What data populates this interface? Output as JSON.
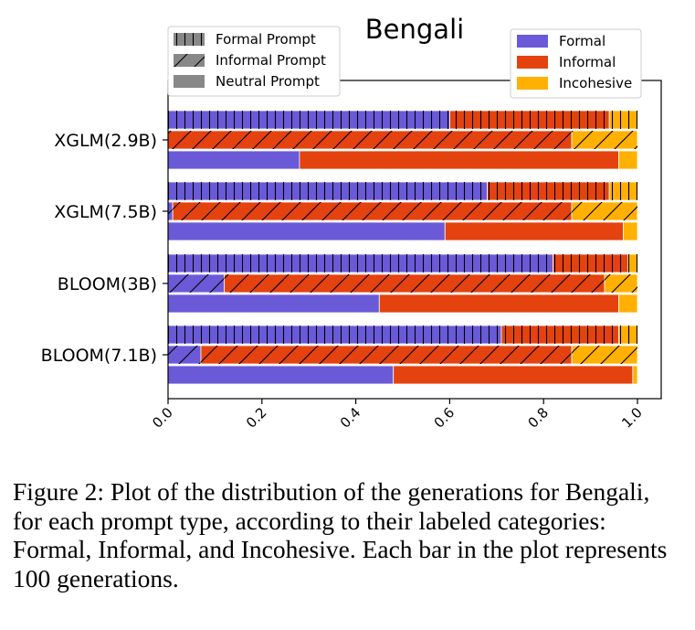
{
  "chart_data": {
    "type": "bar",
    "orientation": "horizontal",
    "stacked": true,
    "title": "Bengali",
    "categories": [
      "XGLM(2.9B)",
      "XGLM(7.5B)",
      "BLOOM(3B)",
      "BLOOM(7.1B)"
    ],
    "prompt_types": [
      "Formal Prompt",
      "Informal Prompt",
      "Neutral Prompt"
    ],
    "label_categories": [
      "Formal",
      "Informal",
      "Incohesive"
    ],
    "colors": {
      "Formal": "#6a5ad8",
      "Informal": "#e4420f",
      "Incohesive": "#ffb000"
    },
    "values": {
      "XGLM(2.9B)": {
        "Formal Prompt": [
          0.6,
          0.34,
          0.06
        ],
        "Informal Prompt": [
          0.0,
          0.86,
          0.14
        ],
        "Neutral Prompt": [
          0.28,
          0.68,
          0.04
        ]
      },
      "XGLM(7.5B)": {
        "Formal Prompt": [
          0.68,
          0.26,
          0.06
        ],
        "Informal Prompt": [
          0.01,
          0.85,
          0.14
        ],
        "Neutral Prompt": [
          0.59,
          0.38,
          0.03
        ]
      },
      "BLOOM(3B)": {
        "Formal Prompt": [
          0.82,
          0.16,
          0.02
        ],
        "Informal Prompt": [
          0.12,
          0.81,
          0.07
        ],
        "Neutral Prompt": [
          0.45,
          0.51,
          0.04
        ]
      },
      "BLOOM(7.1B)": {
        "Formal Prompt": [
          0.71,
          0.25,
          0.04
        ],
        "Informal Prompt": [
          0.07,
          0.79,
          0.14
        ],
        "Neutral Prompt": [
          0.48,
          0.51,
          0.01
        ]
      }
    },
    "xlim": [
      0,
      1.0
    ],
    "xticks": [
      "0.0",
      "0.2",
      "0.4",
      "0.6",
      "0.8",
      "1.0"
    ],
    "legend_prompt_placement": "top-left",
    "legend_label_placement": "top-right",
    "grid": false
  },
  "caption": "Figure 2: Plot of the distribution of the generations for Bengali, for each prompt type, according to their labeled categories: Formal, Informal, and Incohesive. Each bar in the plot represents 100 generations."
}
